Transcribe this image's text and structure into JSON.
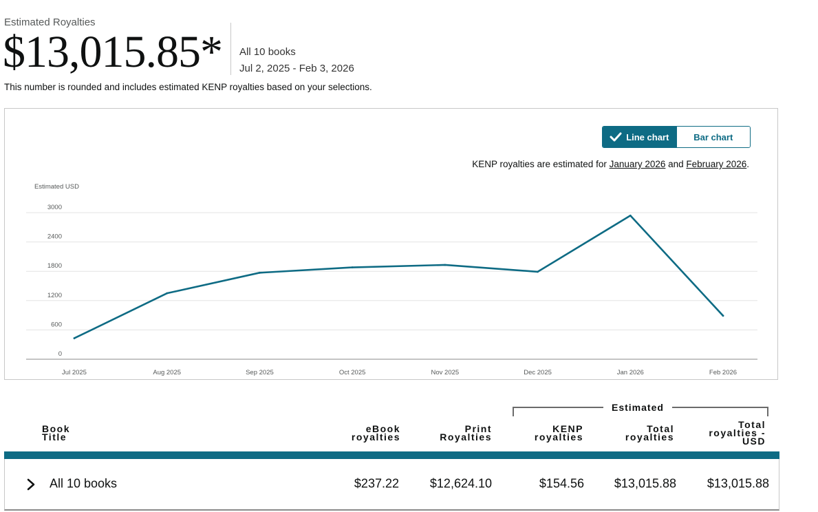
{
  "summary": {
    "label": "Estimated Royalties",
    "amount": "$13,015.85*",
    "scope": "All 10 books",
    "date_range": "Jul 2, 2025 - Feb 3, 2026",
    "note": "This number is rounded and includes estimated KENP royalties based on your selections."
  },
  "toggle": {
    "line_label": "Line chart",
    "bar_label": "Bar chart",
    "active": "line"
  },
  "kenp_note": {
    "prefix": "KENP royalties are estimated for ",
    "month1": "January 2026",
    "middle": " and ",
    "month2": "February 2026",
    "suffix": "."
  },
  "chart_data": {
    "type": "line",
    "ylabel": "Estimated USD",
    "xlabel": "",
    "categories": [
      "Jul 2025",
      "Aug 2025",
      "Sep 2025",
      "Oct 2025",
      "Nov 2025",
      "Dec 2025",
      "Jan 2026",
      "Feb 2026"
    ],
    "series": [
      {
        "values": [
          430,
          1350,
          1770,
          1880,
          1930,
          1790,
          2940,
          890
        ]
      }
    ],
    "yticks": [
      0,
      600,
      1200,
      1800,
      2400,
      3000
    ],
    "ylim": [
      0,
      3000
    ],
    "grid": true,
    "color": "#0e6b84"
  },
  "table": {
    "estimated_label": "Estimated",
    "headers": {
      "title_line1": "Book",
      "title_line2": "Title",
      "ebook_line1": "eBook",
      "ebook_line2": "royalties",
      "print_line1": "Print",
      "print_line2": "Royalties",
      "kenp_line1": "KENP",
      "kenp_line2": "royalties",
      "total_line1": "Total",
      "total_line2": "royalties",
      "usd_line1": "Total",
      "usd_line2": "royalties -",
      "usd_line3": "USD"
    },
    "row": {
      "title": "All 10 books",
      "ebook": "$237.22",
      "print": "$12,624.10",
      "kenp": "$154.56",
      "total": "$13,015.88",
      "usd": "$13,015.88"
    }
  },
  "colors": {
    "accent": "#0e6b84",
    "grid": "#e3e3e3",
    "axis": "#8a8a8a"
  }
}
